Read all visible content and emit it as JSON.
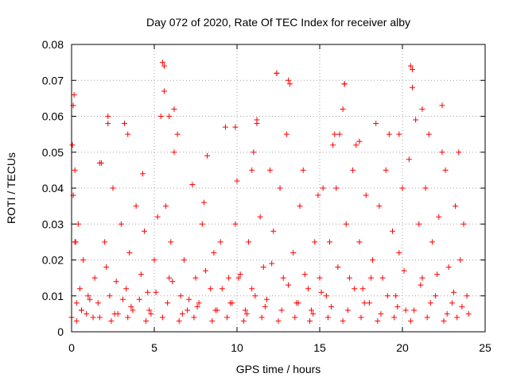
{
  "chart_data": {
    "type": "scatter",
    "title": "Day 072 of 2020, Rate Of TEC Index for receiver alby",
    "xlabel": "GPS time / hours",
    "ylabel": "ROTI / TECUs",
    "xlim": [
      0,
      25
    ],
    "ylim": [
      0,
      0.08
    ],
    "xticks": [
      0,
      5,
      10,
      15,
      20,
      25
    ],
    "yticks": [
      0,
      0.01,
      0.02,
      0.03,
      0.04,
      0.05,
      0.06,
      0.07,
      0.08
    ],
    "xtick_labels": [
      "0",
      "5",
      "10",
      "15",
      "20",
      "25"
    ],
    "ytick_labels": [
      "0",
      "0.01",
      "0.02",
      "0.03",
      "0.04",
      "0.05",
      "0.06",
      "0.07",
      "0.08"
    ],
    "grid": true,
    "marker": "+",
    "color": "#ff0000",
    "series": [
      {
        "x": [
          0.0,
          0.05,
          0.1,
          0.15,
          0.2,
          0.25,
          0.3,
          0.4,
          0.5,
          0.6,
          0.7,
          0.9,
          1.1,
          1.4,
          1.7,
          1.8,
          2.0,
          2.2,
          2.3,
          2.5,
          2.7,
          2.8,
          3.0,
          3.2,
          3.3,
          3.5,
          3.7,
          3.9,
          4.1,
          4.3,
          4.4,
          4.6,
          4.8,
          5.0,
          5.2,
          5.4,
          5.5,
          5.6,
          5.7,
          5.9,
          6.0,
          6.2,
          6.4,
          6.6,
          6.8,
          7.0,
          7.3,
          7.5,
          7.7,
          7.9,
          8.0,
          8.2,
          8.4,
          8.6,
          8.8,
          9.0,
          9.3,
          9.5,
          9.7,
          9.9,
          10.0,
          10.2,
          10.5,
          10.7,
          10.9,
          11.0,
          11.2,
          11.4,
          11.6,
          11.8,
          12.0,
          12.2,
          12.4,
          12.6,
          12.8,
          13.0,
          13.2,
          13.4,
          13.6,
          13.8,
          14.0,
          14.3,
          14.5,
          14.7,
          14.9,
          15.0,
          15.2,
          15.4,
          15.6,
          15.8,
          16.0,
          16.2,
          16.4,
          16.5,
          16.6,
          16.8,
          17.0,
          17.2,
          17.4,
          17.6,
          17.8,
          18.0,
          18.2,
          18.4,
          18.6,
          18.8,
          19.0,
          19.2,
          19.4,
          19.6,
          19.8,
          20.0,
          20.2,
          20.4,
          20.5,
          20.6,
          20.8,
          21.0,
          21.2,
          21.4,
          21.6,
          21.8,
          22.0,
          22.2,
          22.4,
          22.6,
          22.8,
          23.0,
          23.2,
          23.4,
          23.5,
          23.7,
          23.9,
          24.0,
          0.2,
          1.0,
          2.1,
          3.1,
          4.2,
          5.1,
          6.1,
          7.1,
          8.1,
          9.1,
          10.1,
          11.1,
          12.1,
          13.1,
          14.1,
          15.1,
          16.1,
          17.1,
          18.1,
          19.1,
          20.1,
          21.1,
          22.1,
          23.1,
          0.6,
          1.6,
          2.6,
          3.6,
          4.7,
          5.8,
          6.7,
          7.6,
          8.7,
          9.6,
          10.6,
          11.7,
          12.7,
          13.7,
          14.6,
          15.7,
          16.7,
          17.7,
          18.7,
          19.7,
          20.7,
          21.7,
          22.7,
          23.6,
          0.3,
          1.3,
          2.4,
          3.4,
          4.5,
          5.5,
          6.5,
          7.4,
          8.5,
          9.4,
          10.4,
          11.5,
          12.5,
          13.5,
          14.4,
          15.5,
          16.4,
          17.5,
          18.5,
          19.5,
          20.5,
          21.5,
          22.5,
          23.3,
          5.6,
          12.4,
          13.1,
          16.5,
          20.6,
          0.1,
          2.2,
          3.4,
          6.2,
          9.9,
          11.2,
          17.4,
          19.8,
          22.4,
          1.7,
          5.9,
          10.9,
          15.9,
          21.2
        ],
        "y": [
          0.004,
          0.052,
          0.038,
          0.066,
          0.045,
          0.025,
          0.008,
          0.03,
          0.012,
          0.006,
          0.02,
          0.005,
          0.009,
          0.015,
          0.004,
          0.047,
          0.025,
          0.058,
          0.01,
          0.04,
          0.014,
          0.005,
          0.03,
          0.058,
          0.012,
          0.022,
          0.006,
          0.035,
          0.009,
          0.044,
          0.028,
          0.011,
          0.005,
          0.02,
          0.032,
          0.06,
          0.075,
          0.067,
          0.035,
          0.015,
          0.025,
          0.062,
          0.055,
          0.01,
          0.02,
          0.006,
          0.041,
          0.015,
          0.008,
          0.03,
          0.036,
          0.049,
          0.012,
          0.022,
          0.006,
          0.025,
          0.057,
          0.015,
          0.008,
          0.03,
          0.042,
          0.016,
          0.006,
          0.025,
          0.012,
          0.05,
          0.058,
          0.032,
          0.018,
          0.009,
          0.045,
          0.028,
          0.072,
          0.04,
          0.015,
          0.055,
          0.069,
          0.022,
          0.008,
          0.035,
          0.045,
          0.012,
          0.006,
          0.025,
          0.038,
          0.015,
          0.04,
          0.01,
          0.025,
          0.052,
          0.04,
          0.055,
          0.062,
          0.069,
          0.03,
          0.015,
          0.045,
          0.052,
          0.025,
          0.012,
          0.038,
          0.008,
          0.02,
          0.058,
          0.035,
          0.015,
          0.045,
          0.055,
          0.028,
          0.01,
          0.022,
          0.04,
          0.006,
          0.048,
          0.074,
          0.068,
          0.059,
          0.03,
          0.015,
          0.04,
          0.055,
          0.025,
          0.01,
          0.032,
          0.063,
          0.045,
          0.018,
          0.008,
          0.035,
          0.05,
          0.02,
          0.03,
          0.01,
          0.005,
          0.025,
          0.01,
          0.018,
          0.009,
          0.016,
          0.011,
          0.014,
          0.009,
          0.017,
          0.012,
          0.015,
          0.01,
          0.019,
          0.013,
          0.016,
          0.011,
          0.018,
          0.012,
          0.015,
          0.01,
          0.017,
          0.013,
          0.016,
          0.011,
          0.006,
          0.008,
          0.005,
          0.007,
          0.006,
          0.008,
          0.005,
          0.007,
          0.006,
          0.008,
          0.005,
          0.007,
          0.006,
          0.008,
          0.005,
          0.007,
          0.006,
          0.008,
          0.005,
          0.007,
          0.006,
          0.008,
          0.005,
          0.007,
          0.003,
          0.004,
          0.003,
          0.004,
          0.003,
          0.004,
          0.003,
          0.004,
          0.003,
          0.004,
          0.003,
          0.004,
          0.003,
          0.004,
          0.003,
          0.004,
          0.003,
          0.004,
          0.003,
          0.004,
          0.003,
          0.004,
          0.003,
          0.004,
          0.074,
          0.072,
          0.07,
          0.069,
          0.073,
          0.063,
          0.06,
          0.055,
          0.05,
          0.057,
          0.059,
          0.053,
          0.055,
          0.05,
          0.047,
          0.06,
          0.045,
          0.055,
          0.062
        ]
      }
    ]
  }
}
